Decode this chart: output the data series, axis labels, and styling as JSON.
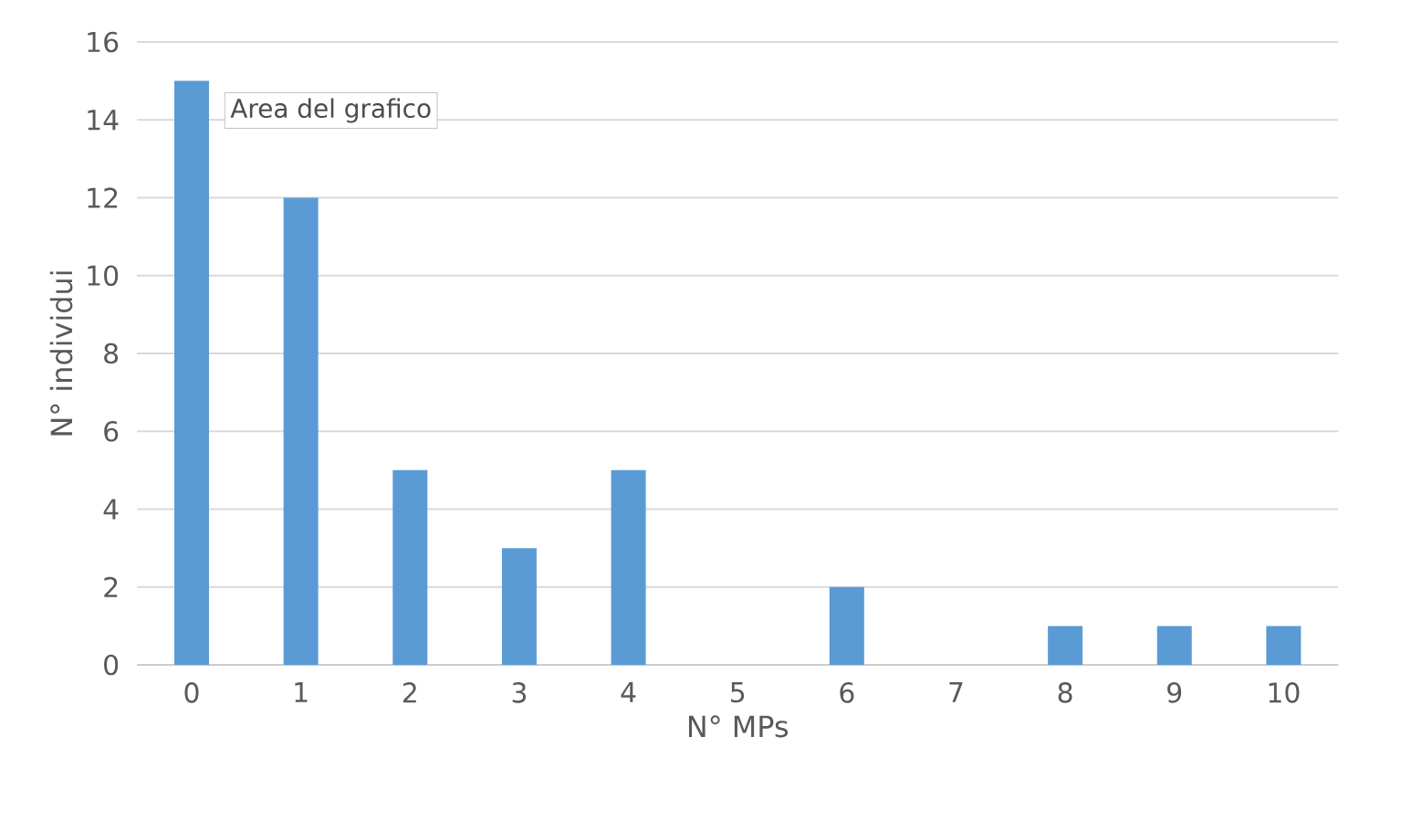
{
  "chart_data": {
    "type": "bar",
    "xlabel": "N° MPs",
    "ylabel": "N° individui",
    "categories": [
      "0",
      "1",
      "2",
      "3",
      "4",
      "5",
      "6",
      "7",
      "8",
      "9",
      "10"
    ],
    "values": [
      15,
      12,
      5,
      3,
      5,
      0,
      2,
      0,
      1,
      1,
      1
    ],
    "color": "#5b9bd5",
    "ylim": [
      0,
      16
    ],
    "yticks": [
      0,
      2,
      4,
      6,
      8,
      10,
      12,
      14,
      16
    ],
    "grid": "y",
    "annotations": [
      "Area del grafico"
    ]
  }
}
